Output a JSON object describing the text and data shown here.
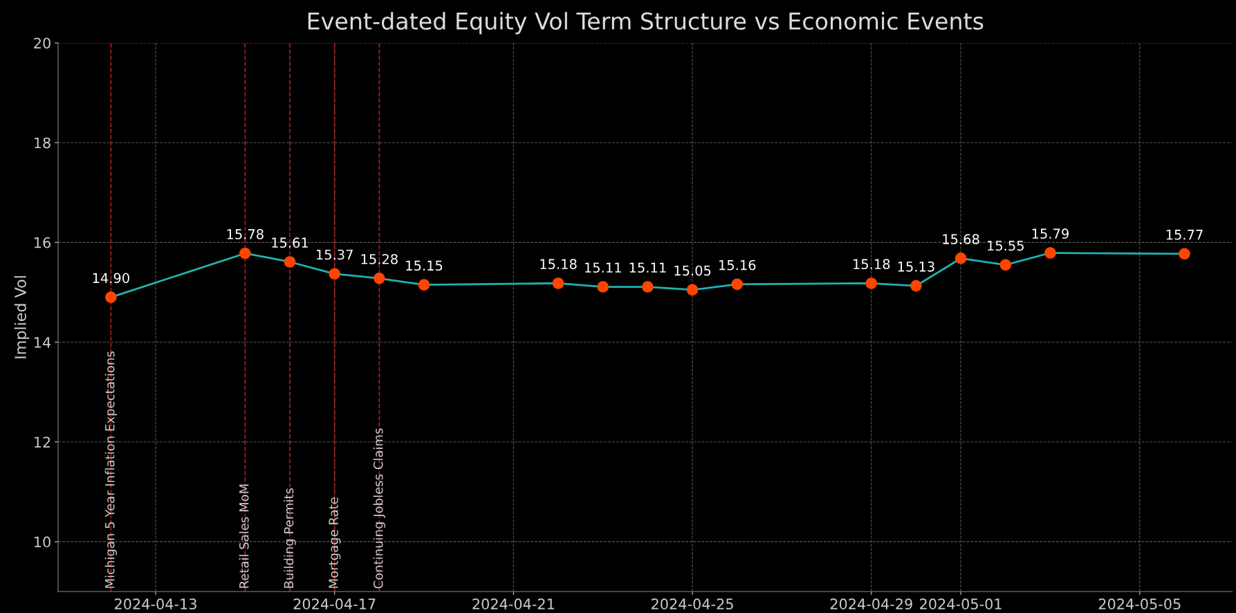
{
  "chart_data": {
    "type": "line",
    "title": "Event-dated Equity Vol Term Structure vs Economic Events",
    "ylabel": "Implied Vol",
    "x": [
      "2024-04-12",
      "2024-04-15",
      "2024-04-16",
      "2024-04-17",
      "2024-04-18",
      "2024-04-19",
      "2024-04-22",
      "2024-04-23",
      "2024-04-24",
      "2024-04-25",
      "2024-04-26",
      "2024-04-29",
      "2024-04-30",
      "2024-05-01",
      "2024-05-02",
      "2024-05-03",
      "2024-05-06"
    ],
    "series": [
      {
        "color": "#1fb3b3",
        "values": [
          14.9,
          15.78,
          15.61,
          15.37,
          15.28,
          15.15,
          15.18,
          15.11,
          15.11,
          15.05,
          15.16,
          15.18,
          15.13,
          15.68,
          15.55,
          15.79,
          15.77
        ],
        "value_labels": [
          "14.90",
          "15.78",
          "15.61",
          "15.37",
          "15.28",
          "15.15",
          "15.18",
          "15.11",
          "15.11",
          "15.05",
          "15.16",
          "15.18",
          "15.13",
          "15.68",
          "15.55",
          "15.79",
          "15.77"
        ]
      }
    ],
    "marker": "circle",
    "line_style": "solid",
    "ylim": [
      9,
      20
    ],
    "yticks": [
      10,
      12,
      14,
      16,
      18,
      20
    ],
    "xlim": [
      "2024-04-10T19:40",
      "2024-05-07T01:40"
    ],
    "xticks": [
      "2024-04-13",
      "2024-04-17",
      "2024-04-21",
      "2024-04-25",
      "2024-04-29",
      "2024-05-01",
      "2024-05-05"
    ],
    "grid": true,
    "ref_lines": [
      {
        "axis": "x",
        "value": "2024-04-12",
        "label": "Michigan 5 Year Inflation Expectations",
        "color": "#b01e1e",
        "line_style": "dashed"
      },
      {
        "axis": "x",
        "value": "2024-04-15",
        "label": "Retail Sales MoM",
        "color": "#b01e1e",
        "line_style": "dashed"
      },
      {
        "axis": "x",
        "value": "2024-04-16",
        "label": "Building Permits",
        "color": "#b01e1e",
        "line_style": "dashed"
      },
      {
        "axis": "x",
        "value": "2024-04-17",
        "label": "Mortgage Rate",
        "color": "#b01e1e",
        "line_style": "dashed"
      },
      {
        "axis": "x",
        "value": "2024-04-18",
        "label": "Continuing Jobless Claims",
        "color": "#b01e1e",
        "line_style": "dashed"
      }
    ]
  }
}
